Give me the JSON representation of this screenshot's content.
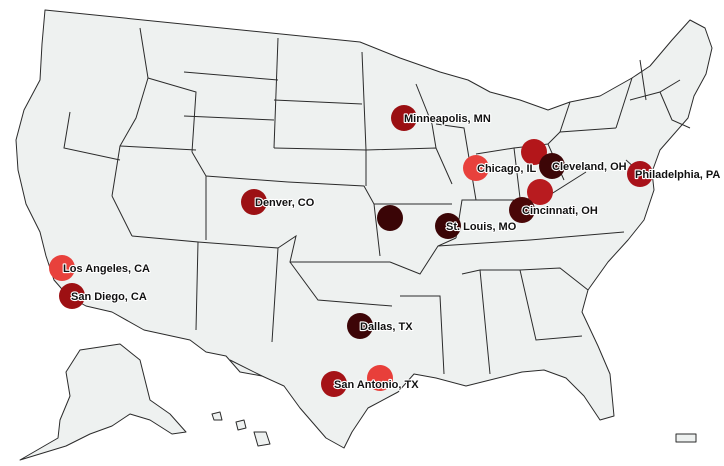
{
  "map": {
    "title": "",
    "region": "United States"
  },
  "cities": [
    {
      "label": "Minneapolis, MN",
      "color": "#9a0f12"
    },
    {
      "label": "Chicago, IL",
      "color": "#e8413c"
    },
    {
      "label": "",
      "color": "#b3161a"
    },
    {
      "label": "Cleveland, OH",
      "color": "#3d0607"
    },
    {
      "label": "Philadelphia, PA",
      "color": "#a8121a"
    },
    {
      "label": "",
      "color": "#b81b1f"
    },
    {
      "label": "Cincinnati, OH",
      "color": "#4a0708"
    },
    {
      "label": "Denver, CO",
      "color": "#9c1114"
    },
    {
      "label": "",
      "color": "#3a0506"
    },
    {
      "label": "St. Louis, MO",
      "color": "#3b0506"
    },
    {
      "label": "Los Angeles, CA",
      "color": "#e8413c"
    },
    {
      "label": "San Diego, CA",
      "color": "#9d1013"
    },
    {
      "label": "Dallas, TX",
      "color": "#3d0507"
    },
    {
      "label": "San Antonio, TX",
      "color": "#a51317"
    },
    {
      "label": "",
      "color": "#e83f3a"
    }
  ]
}
